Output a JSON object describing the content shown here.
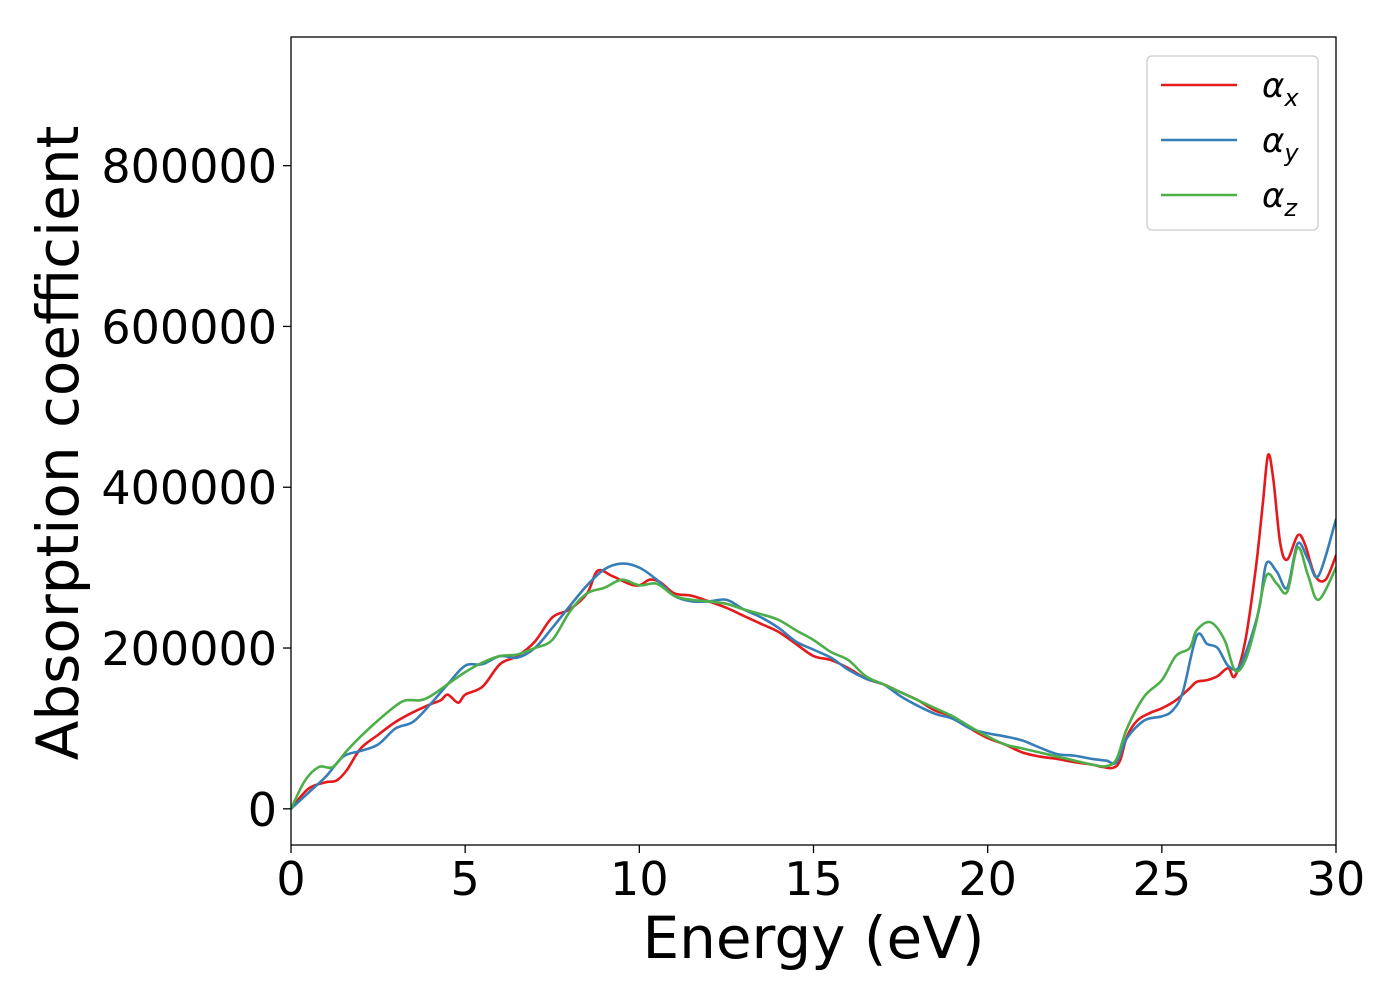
{
  "chart_data": {
    "type": "line",
    "title": "",
    "xlabel": "Energy (eV)",
    "ylabel": "Absorption coefficient",
    "xlim": [
      0,
      30
    ],
    "ylim": [
      -45000,
      960000
    ],
    "xticks": [
      0,
      5,
      10,
      15,
      20,
      25,
      30
    ],
    "yticks": [
      0,
      200000,
      400000,
      600000,
      800000
    ],
    "xtick_labels": [
      "0",
      "5",
      "10",
      "15",
      "20",
      "25",
      "30"
    ],
    "ytick_labels": [
      "0",
      "200000",
      "400000",
      "600000",
      "800000"
    ],
    "grid": false,
    "legend_position": "top-right",
    "series": [
      {
        "name": "αx",
        "label_base": "α",
        "label_sub": "x",
        "color": "#e41a1c",
        "x": [
          0,
          0.5,
          1,
          1.3,
          1.6,
          2,
          2.5,
          3,
          3.5,
          4,
          4.3,
          4.5,
          4.8,
          5,
          5.5,
          6,
          6.5,
          7,
          7.5,
          8,
          8.5,
          8.8,
          9.2,
          9.7,
          10,
          10.3,
          10.6,
          11,
          11.5,
          12,
          12.5,
          13,
          13.5,
          14,
          14.5,
          15,
          15.5,
          16,
          16.5,
          17,
          17.5,
          18,
          18.5,
          19,
          19.5,
          20,
          20.5,
          21,
          21.5,
          22,
          22.5,
          23,
          23.3,
          23.6,
          23.8,
          24,
          24.3,
          24.7,
          25,
          25.4,
          25.8,
          26,
          26.3,
          26.6,
          26.9,
          27.1,
          27.4,
          27.7,
          27.9,
          28.05,
          28.2,
          28.4,
          28.6,
          28.9,
          29.1,
          29.4,
          29.7,
          30
        ],
        "y": [
          0,
          25000,
          33000,
          35000,
          48000,
          75000,
          92000,
          108000,
          120000,
          130000,
          135000,
          142000,
          132000,
          142000,
          152000,
          180000,
          190000,
          208000,
          238000,
          248000,
          268000,
          296000,
          290000,
          280000,
          278000,
          285000,
          282000,
          268000,
          265000,
          258000,
          250000,
          240000,
          230000,
          220000,
          205000,
          190000,
          185000,
          175000,
          162000,
          155000,
          145000,
          135000,
          122000,
          115000,
          100000,
          88000,
          80000,
          70000,
          65000,
          62000,
          58000,
          55000,
          52000,
          51000,
          60000,
          90000,
          110000,
          120000,
          125000,
          135000,
          150000,
          158000,
          160000,
          165000,
          175000,
          165000,
          210000,
          300000,
          380000,
          440000,
          410000,
          330000,
          310000,
          340000,
          330000,
          290000,
          285000,
          315000
        ]
      },
      {
        "name": "αy",
        "label_base": "α",
        "label_sub": "y",
        "color": "#377eb8",
        "x": [
          0,
          0.5,
          1,
          1.5,
          2,
          2.5,
          3,
          3.5,
          4,
          4.5,
          5,
          5.5,
          6,
          6.5,
          7,
          7.5,
          8,
          8.5,
          9,
          9.5,
          10,
          10.5,
          11,
          11.5,
          12,
          12.5,
          13,
          13.5,
          14,
          14.5,
          15,
          15.5,
          16,
          16.5,
          17,
          17.5,
          18,
          18.5,
          19,
          19.5,
          20,
          20.5,
          21,
          21.5,
          22,
          22.5,
          23,
          23.4,
          23.7,
          24,
          24.5,
          25,
          25.3,
          25.6,
          26,
          26.3,
          26.6,
          26.9,
          27.2,
          27.5,
          27.8,
          28,
          28.3,
          28.6,
          28.9,
          29.2,
          29.5,
          30
        ],
        "y": [
          0,
          20000,
          40000,
          65000,
          72000,
          80000,
          100000,
          108000,
          130000,
          155000,
          178000,
          180000,
          190000,
          188000,
          200000,
          225000,
          252000,
          278000,
          298000,
          305000,
          300000,
          285000,
          265000,
          258000,
          258000,
          260000,
          248000,
          238000,
          225000,
          208000,
          198000,
          188000,
          173000,
          162000,
          155000,
          140000,
          128000,
          118000,
          112000,
          100000,
          94000,
          90000,
          85000,
          76000,
          68000,
          66000,
          62000,
          60000,
          58000,
          88000,
          110000,
          115000,
          122000,
          145000,
          215000,
          205000,
          200000,
          178000,
          175000,
          205000,
          250000,
          305000,
          295000,
          275000,
          330000,
          310000,
          290000,
          360000
        ]
      },
      {
        "name": "αz",
        "label_base": "α",
        "label_sub": "z",
        "color": "#4daf4a",
        "x": [
          0,
          0.4,
          0.8,
          1.2,
          1.6,
          2,
          2.5,
          3,
          3.3,
          3.7,
          4,
          4.5,
          5,
          5.5,
          6,
          6.5,
          7,
          7.5,
          8,
          8.5,
          9,
          9.5,
          10,
          10.5,
          11,
          11.5,
          12,
          12.5,
          13,
          13.5,
          14,
          14.5,
          15,
          15.5,
          16,
          16.5,
          17,
          17.5,
          18,
          18.5,
          19,
          19.5,
          20,
          20.5,
          21,
          21.5,
          22,
          22.5,
          23,
          23.4,
          23.7,
          24,
          24.5,
          25,
          25.4,
          25.8,
          26,
          26.4,
          26.8,
          27.1,
          27.4,
          27.7,
          28,
          28.3,
          28.6,
          28.9,
          29.2,
          29.5,
          30
        ],
        "y": [
          0,
          35000,
          52000,
          52000,
          72000,
          90000,
          110000,
          128000,
          135000,
          135000,
          140000,
          155000,
          170000,
          182000,
          190000,
          192000,
          200000,
          210000,
          245000,
          268000,
          275000,
          285000,
          278000,
          280000,
          265000,
          260000,
          258000,
          255000,
          248000,
          242000,
          235000,
          222000,
          210000,
          195000,
          185000,
          165000,
          155000,
          145000,
          135000,
          125000,
          115000,
          102000,
          90000,
          80000,
          75000,
          70000,
          65000,
          60000,
          55000,
          53000,
          62000,
          100000,
          140000,
          160000,
          190000,
          200000,
          222000,
          232000,
          210000,
          172000,
          185000,
          230000,
          290000,
          280000,
          270000,
          325000,
          290000,
          260000,
          300000
        ]
      }
    ]
  }
}
